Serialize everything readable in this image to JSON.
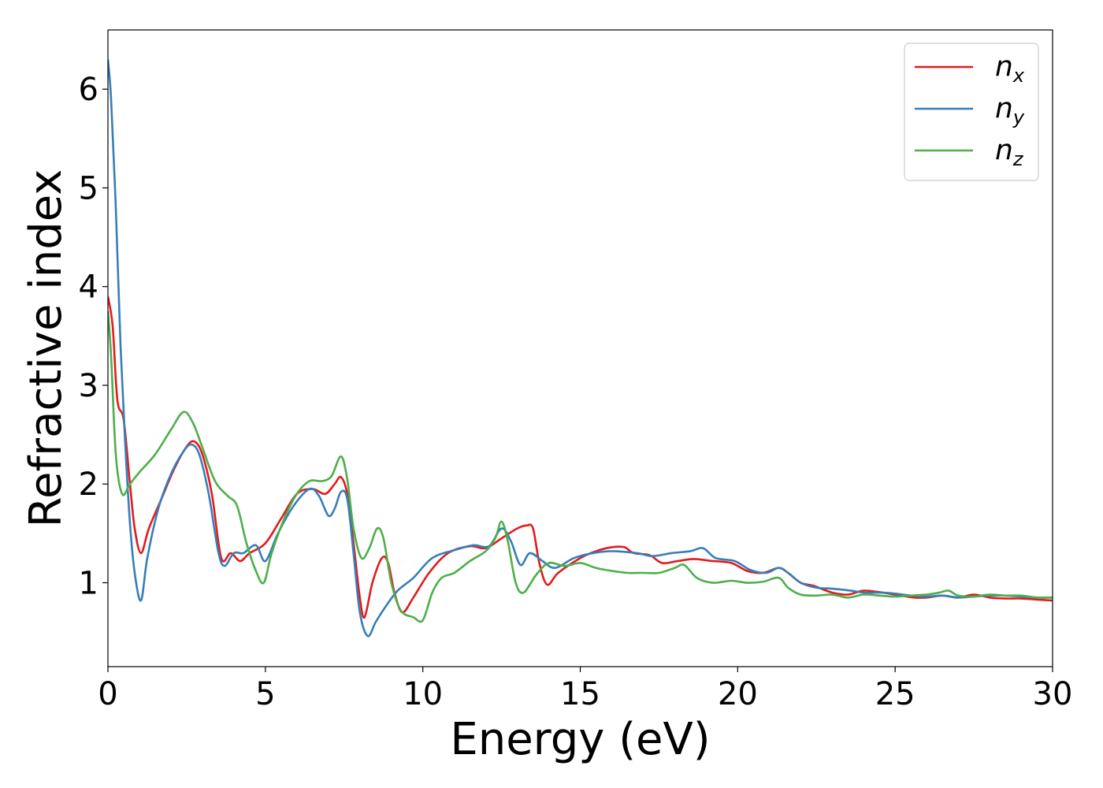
{
  "chart_data": {
    "type": "line",
    "xlabel": "Energy (eV)",
    "ylabel": "Refractive index",
    "xlim": [
      0,
      30
    ],
    "ylim": [
      0.15,
      6.6
    ],
    "xticks": [
      0,
      5,
      10,
      15,
      20,
      25,
      30
    ],
    "yticks": [
      1,
      2,
      3,
      4,
      5,
      6
    ],
    "grid": false,
    "legend_position": "top-right",
    "series": [
      {
        "name": "n_x",
        "label_main": "n",
        "label_sub": "x",
        "color": "#e41a1c",
        "points": [
          [
            0,
            3.9
          ],
          [
            0.15,
            3.6
          ],
          [
            0.3,
            2.85
          ],
          [
            0.5,
            2.65
          ],
          [
            0.7,
            2.0
          ],
          [
            0.85,
            1.55
          ],
          [
            1.05,
            1.3
          ],
          [
            1.3,
            1.55
          ],
          [
            1.7,
            1.85
          ],
          [
            2.1,
            2.15
          ],
          [
            2.5,
            2.38
          ],
          [
            2.75,
            2.43
          ],
          [
            3.0,
            2.3
          ],
          [
            3.3,
            1.9
          ],
          [
            3.6,
            1.25
          ],
          [
            3.9,
            1.3
          ],
          [
            4.2,
            1.22
          ],
          [
            4.5,
            1.3
          ],
          [
            5.0,
            1.4
          ],
          [
            5.5,
            1.65
          ],
          [
            6.0,
            1.9
          ],
          [
            6.5,
            1.95
          ],
          [
            6.9,
            1.9
          ],
          [
            7.2,
            2.0
          ],
          [
            7.4,
            2.07
          ],
          [
            7.6,
            1.9
          ],
          [
            7.8,
            1.4
          ],
          [
            8.0,
            0.85
          ],
          [
            8.15,
            0.65
          ],
          [
            8.4,
            1.0
          ],
          [
            8.7,
            1.25
          ],
          [
            8.9,
            1.2
          ],
          [
            9.1,
            0.9
          ],
          [
            9.35,
            0.7
          ],
          [
            9.7,
            0.85
          ],
          [
            10.2,
            1.1
          ],
          [
            10.8,
            1.3
          ],
          [
            11.5,
            1.37
          ],
          [
            12.0,
            1.35
          ],
          [
            12.5,
            1.45
          ],
          [
            13.0,
            1.55
          ],
          [
            13.3,
            1.58
          ],
          [
            13.5,
            1.55
          ],
          [
            13.7,
            1.2
          ],
          [
            13.95,
            0.98
          ],
          [
            14.3,
            1.1
          ],
          [
            15.0,
            1.25
          ],
          [
            15.5,
            1.32
          ],
          [
            16.0,
            1.36
          ],
          [
            16.4,
            1.36
          ],
          [
            16.7,
            1.3
          ],
          [
            17.2,
            1.28
          ],
          [
            17.6,
            1.2
          ],
          [
            18.1,
            1.22
          ],
          [
            18.6,
            1.24
          ],
          [
            19.2,
            1.22
          ],
          [
            19.8,
            1.2
          ],
          [
            20.3,
            1.12
          ],
          [
            20.8,
            1.1
          ],
          [
            21.3,
            1.15
          ],
          [
            21.6,
            1.1
          ],
          [
            22.0,
            1.0
          ],
          [
            22.4,
            0.97
          ],
          [
            23.0,
            0.9
          ],
          [
            23.5,
            0.88
          ],
          [
            24.0,
            0.92
          ],
          [
            24.6,
            0.9
          ],
          [
            25.0,
            0.88
          ],
          [
            25.6,
            0.85
          ],
          [
            26.0,
            0.85
          ],
          [
            26.5,
            0.87
          ],
          [
            27.0,
            0.85
          ],
          [
            27.5,
            0.88
          ],
          [
            28.0,
            0.85
          ],
          [
            28.5,
            0.84
          ],
          [
            29.0,
            0.84
          ],
          [
            29.5,
            0.83
          ],
          [
            30.0,
            0.82
          ]
        ]
      },
      {
        "name": "n_y",
        "label_main": "n",
        "label_sub": "y",
        "color": "#377eb8",
        "points": [
          [
            0,
            6.3
          ],
          [
            0.1,
            5.9
          ],
          [
            0.25,
            4.8
          ],
          [
            0.4,
            3.4
          ],
          [
            0.55,
            2.4
          ],
          [
            0.7,
            1.6
          ],
          [
            0.85,
            1.1
          ],
          [
            1.05,
            0.82
          ],
          [
            1.25,
            1.25
          ],
          [
            1.6,
            1.75
          ],
          [
            2.0,
            2.1
          ],
          [
            2.4,
            2.33
          ],
          [
            2.65,
            2.4
          ],
          [
            2.9,
            2.3
          ],
          [
            3.2,
            1.9
          ],
          [
            3.5,
            1.32
          ],
          [
            3.7,
            1.17
          ],
          [
            4.0,
            1.3
          ],
          [
            4.3,
            1.3
          ],
          [
            4.7,
            1.38
          ],
          [
            5.0,
            1.22
          ],
          [
            5.4,
            1.5
          ],
          [
            5.9,
            1.78
          ],
          [
            6.4,
            1.95
          ],
          [
            6.7,
            1.88
          ],
          [
            7.0,
            1.68
          ],
          [
            7.2,
            1.75
          ],
          [
            7.4,
            1.92
          ],
          [
            7.6,
            1.85
          ],
          [
            7.8,
            1.3
          ],
          [
            8.0,
            0.7
          ],
          [
            8.25,
            0.46
          ],
          [
            8.5,
            0.6
          ],
          [
            8.8,
            0.75
          ],
          [
            9.2,
            0.92
          ],
          [
            9.7,
            1.05
          ],
          [
            10.3,
            1.25
          ],
          [
            11.0,
            1.33
          ],
          [
            11.6,
            1.38
          ],
          [
            12.1,
            1.37
          ],
          [
            12.5,
            1.55
          ],
          [
            12.8,
            1.42
          ],
          [
            13.1,
            1.18
          ],
          [
            13.4,
            1.3
          ],
          [
            13.8,
            1.22
          ],
          [
            14.2,
            1.15
          ],
          [
            14.8,
            1.25
          ],
          [
            15.4,
            1.3
          ],
          [
            16.0,
            1.32
          ],
          [
            16.8,
            1.3
          ],
          [
            17.3,
            1.27
          ],
          [
            17.9,
            1.3
          ],
          [
            18.5,
            1.32
          ],
          [
            18.9,
            1.35
          ],
          [
            19.3,
            1.25
          ],
          [
            19.9,
            1.22
          ],
          [
            20.4,
            1.13
          ],
          [
            20.9,
            1.1
          ],
          [
            21.3,
            1.15
          ],
          [
            21.6,
            1.1
          ],
          [
            22.0,
            1.0
          ],
          [
            22.5,
            0.95
          ],
          [
            23.0,
            0.94
          ],
          [
            23.6,
            0.92
          ],
          [
            24.0,
            0.9
          ],
          [
            24.6,
            0.9
          ],
          [
            25.0,
            0.89
          ],
          [
            25.5,
            0.87
          ],
          [
            26.0,
            0.86
          ],
          [
            26.5,
            0.87
          ],
          [
            27.0,
            0.85
          ],
          [
            27.5,
            0.86
          ],
          [
            28.0,
            0.87
          ],
          [
            28.5,
            0.87
          ],
          [
            29.0,
            0.86
          ],
          [
            29.5,
            0.85
          ],
          [
            30.0,
            0.85
          ]
        ]
      },
      {
        "name": "n_z",
        "label_main": "n",
        "label_sub": "z",
        "color": "#4daf4a",
        "points": [
          [
            0,
            3.75
          ],
          [
            0.1,
            3.3
          ],
          [
            0.25,
            2.3
          ],
          [
            0.45,
            1.9
          ],
          [
            0.7,
            2.0
          ],
          [
            1.0,
            2.12
          ],
          [
            1.5,
            2.3
          ],
          [
            2.0,
            2.55
          ],
          [
            2.4,
            2.73
          ],
          [
            2.7,
            2.62
          ],
          [
            3.0,
            2.37
          ],
          [
            3.4,
            2.03
          ],
          [
            3.8,
            1.88
          ],
          [
            4.1,
            1.78
          ],
          [
            4.4,
            1.4
          ],
          [
            4.7,
            1.12
          ],
          [
            4.95,
            1.0
          ],
          [
            5.2,
            1.3
          ],
          [
            5.6,
            1.65
          ],
          [
            6.0,
            1.9
          ],
          [
            6.4,
            2.03
          ],
          [
            6.8,
            2.03
          ],
          [
            7.1,
            2.08
          ],
          [
            7.4,
            2.28
          ],
          [
            7.6,
            2.05
          ],
          [
            7.8,
            1.55
          ],
          [
            8.05,
            1.25
          ],
          [
            8.3,
            1.35
          ],
          [
            8.55,
            1.55
          ],
          [
            8.75,
            1.45
          ],
          [
            9.0,
            1.0
          ],
          [
            9.3,
            0.72
          ],
          [
            9.7,
            0.65
          ],
          [
            10.0,
            0.62
          ],
          [
            10.3,
            0.9
          ],
          [
            10.6,
            1.05
          ],
          [
            11.0,
            1.1
          ],
          [
            11.5,
            1.22
          ],
          [
            12.0,
            1.32
          ],
          [
            12.3,
            1.45
          ],
          [
            12.5,
            1.62
          ],
          [
            12.7,
            1.42
          ],
          [
            12.95,
            1.0
          ],
          [
            13.2,
            0.9
          ],
          [
            13.6,
            1.08
          ],
          [
            14.0,
            1.2
          ],
          [
            14.5,
            1.17
          ],
          [
            15.0,
            1.2
          ],
          [
            15.5,
            1.15
          ],
          [
            16.0,
            1.12
          ],
          [
            16.5,
            1.1
          ],
          [
            17.0,
            1.1
          ],
          [
            17.5,
            1.1
          ],
          [
            18.0,
            1.15
          ],
          [
            18.3,
            1.18
          ],
          [
            18.7,
            1.05
          ],
          [
            19.2,
            1.0
          ],
          [
            19.8,
            1.02
          ],
          [
            20.3,
            1.0
          ],
          [
            20.8,
            1.01
          ],
          [
            21.3,
            1.05
          ],
          [
            21.6,
            0.95
          ],
          [
            22.0,
            0.88
          ],
          [
            22.5,
            0.87
          ],
          [
            23.0,
            0.88
          ],
          [
            23.5,
            0.85
          ],
          [
            24.0,
            0.88
          ],
          [
            24.5,
            0.87
          ],
          [
            25.0,
            0.86
          ],
          [
            25.5,
            0.87
          ],
          [
            26.0,
            0.88
          ],
          [
            26.4,
            0.9
          ],
          [
            26.7,
            0.92
          ],
          [
            27.0,
            0.87
          ],
          [
            27.5,
            0.86
          ],
          [
            28.0,
            0.88
          ],
          [
            28.5,
            0.87
          ],
          [
            29.0,
            0.87
          ],
          [
            29.5,
            0.85
          ],
          [
            30.0,
            0.85
          ]
        ]
      }
    ]
  }
}
